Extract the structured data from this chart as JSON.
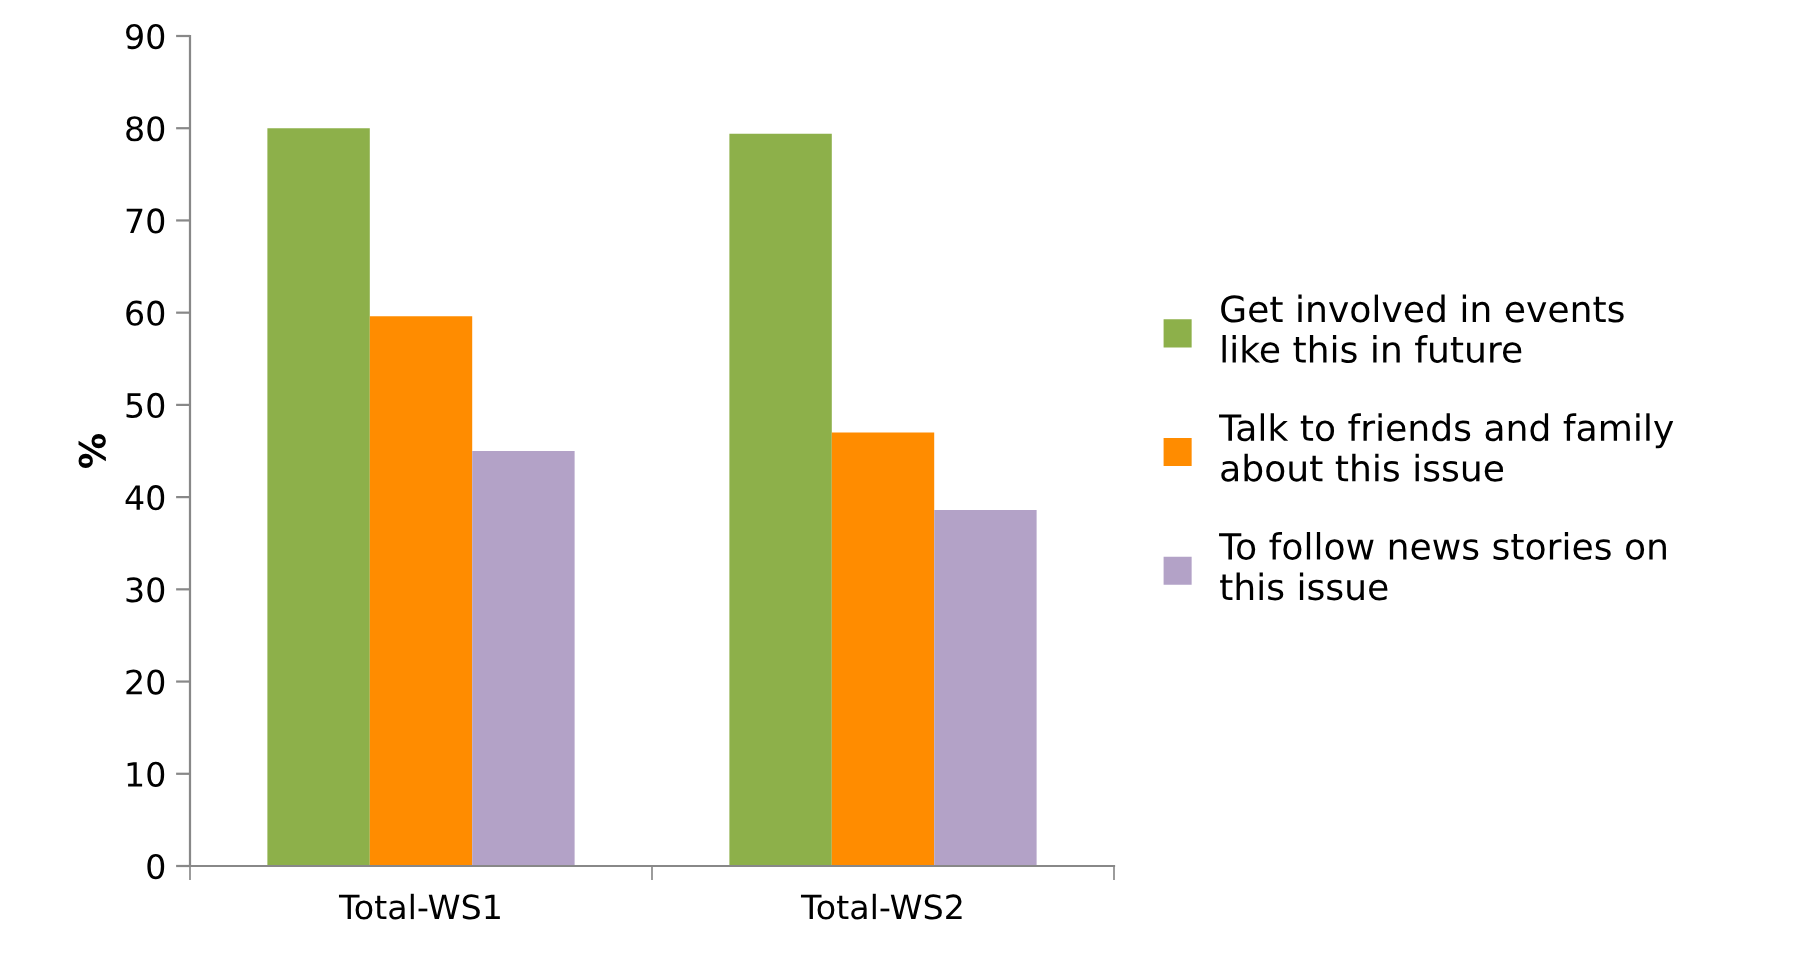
{
  "chart_data": {
    "type": "bar",
    "ylabel": "%",
    "categories": [
      "Total-WS1",
      "Total-WS2"
    ],
    "series": [
      {
        "name": "Get involved in events like this in future",
        "color": "#8db04a",
        "values": [
          80,
          79.4
        ]
      },
      {
        "name": "Talk to friends and family about this issue",
        "color": "#ff8c00",
        "values": [
          59.6,
          47
        ]
      },
      {
        "name": "To follow news stories on this issue",
        "color": "#b3a2c7",
        "values": [
          45,
          38.6
        ]
      }
    ],
    "ylim": [
      0,
      90
    ],
    "yticks": [
      0,
      10,
      20,
      30,
      40,
      50,
      60,
      70,
      80,
      90
    ],
    "grid": false,
    "legend": "right"
  }
}
